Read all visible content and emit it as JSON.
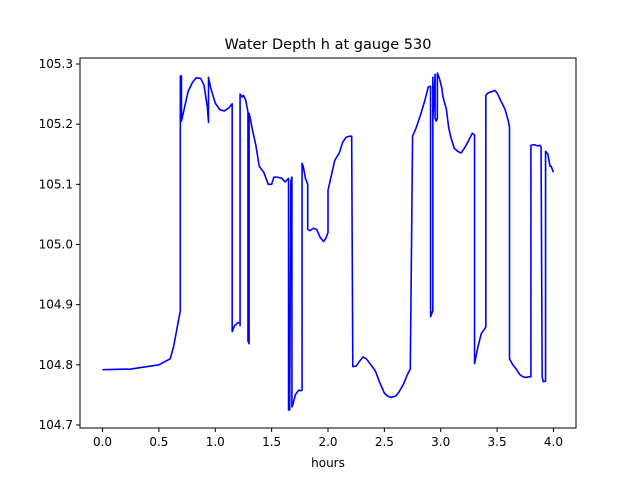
{
  "chart_data": {
    "type": "line",
    "title": "Water Depth h at gauge 530",
    "xlabel": "hours",
    "ylabel": "",
    "xlim": [
      -0.2,
      4.2
    ],
    "ylim": [
      104.695,
      105.31
    ],
    "xticks": [
      "0.0",
      "0.5",
      "1.0",
      "1.5",
      "2.0",
      "2.5",
      "3.0",
      "3.5",
      "4.0"
    ],
    "yticks": [
      "104.7",
      "104.8",
      "104.9",
      "105.0",
      "105.1",
      "105.2",
      "105.3"
    ],
    "grid": false,
    "series": [
      {
        "color": "#0000ff",
        "x": [
          0.0,
          0.25,
          0.5,
          0.6,
          0.63,
          0.66,
          0.69,
          0.69,
          0.7,
          0.7,
          0.73,
          0.76,
          0.8,
          0.83,
          0.87,
          0.9,
          0.93,
          0.94,
          0.94,
          0.96,
          1.0,
          1.04,
          1.08,
          1.12,
          1.15,
          1.15,
          1.17,
          1.2,
          1.22,
          1.22,
          1.22,
          1.24,
          1.25,
          1.27,
          1.29,
          1.29,
          1.3,
          1.3,
          1.31,
          1.33,
          1.36,
          1.39,
          1.43,
          1.47,
          1.5,
          1.52,
          1.55,
          1.59,
          1.62,
          1.65,
          1.65,
          1.66,
          1.67,
          1.68,
          1.68,
          1.69,
          1.71,
          1.74,
          1.76,
          1.77,
          1.77,
          1.78,
          1.8,
          1.82,
          1.82,
          1.84,
          1.87,
          1.9,
          1.93,
          1.96,
          1.98,
          2.0,
          2.0,
          2.03,
          2.06,
          2.1,
          2.13,
          2.16,
          2.19,
          2.21,
          2.22,
          2.22,
          2.25,
          2.28,
          2.31,
          2.34,
          2.38,
          2.42,
          2.46,
          2.5,
          2.53,
          2.56,
          2.6,
          2.63,
          2.67,
          2.7,
          2.73,
          2.75,
          2.75,
          2.78,
          2.82,
          2.86,
          2.89,
          2.91,
          2.91,
          2.92,
          2.93,
          2.93,
          2.93,
          2.95,
          2.95,
          2.96,
          2.97,
          2.97,
          2.99,
          3.01,
          3.02,
          3.05,
          3.07,
          3.09,
          3.12,
          3.15,
          3.18,
          3.21,
          3.24,
          3.28,
          3.3,
          3.3,
          3.33,
          3.36,
          3.39,
          3.4,
          3.4,
          3.42,
          3.45,
          3.48,
          3.5,
          3.53,
          3.57,
          3.6,
          3.61,
          3.61,
          3.64,
          3.67,
          3.7,
          3.73,
          3.76,
          3.78,
          3.8,
          3.8,
          3.83,
          3.86,
          3.88,
          3.89,
          3.9,
          3.91,
          3.93,
          3.93,
          3.95,
          3.97,
          3.98,
          4.0
        ],
        "y": [
          104.792,
          104.793,
          104.8,
          104.81,
          104.83,
          104.86,
          104.89,
          105.28,
          105.28,
          105.205,
          105.23,
          105.255,
          105.27,
          105.277,
          105.276,
          105.265,
          105.228,
          105.203,
          105.278,
          105.26,
          105.235,
          105.224,
          105.222,
          105.227,
          105.234,
          104.855,
          104.865,
          104.87,
          104.87,
          104.865,
          105.25,
          105.245,
          105.248,
          105.24,
          105.22,
          104.84,
          104.835,
          105.218,
          105.21,
          105.19,
          105.165,
          105.13,
          105.12,
          105.1,
          105.1,
          105.112,
          105.112,
          105.11,
          105.104,
          105.11,
          104.725,
          104.725,
          105.105,
          105.112,
          104.73,
          104.735,
          104.75,
          104.758,
          104.757,
          104.758,
          105.135,
          105.13,
          105.11,
          105.1,
          105.025,
          105.023,
          105.027,
          105.025,
          105.012,
          105.005,
          105.01,
          105.02,
          105.09,
          105.115,
          105.14,
          105.152,
          105.17,
          105.178,
          105.18,
          105.18,
          104.797,
          104.797,
          104.798,
          104.806,
          104.813,
          104.81,
          104.8,
          104.79,
          104.77,
          104.753,
          104.748,
          104.746,
          104.748,
          104.755,
          104.768,
          104.782,
          104.793,
          105.175,
          105.18,
          105.193,
          105.215,
          105.24,
          105.262,
          105.263,
          104.88,
          104.885,
          104.89,
          105.278,
          105.205,
          105.283,
          105.21,
          105.205,
          105.21,
          105.285,
          105.275,
          105.26,
          105.245,
          105.225,
          105.195,
          105.178,
          105.16,
          105.155,
          105.152,
          105.16,
          105.17,
          105.185,
          105.182,
          104.802,
          104.83,
          104.852,
          104.86,
          104.863,
          105.248,
          105.252,
          105.254,
          105.256,
          105.252,
          105.24,
          105.225,
          105.205,
          105.195,
          104.81,
          104.8,
          104.793,
          104.784,
          104.78,
          104.779,
          104.78,
          104.78,
          105.165,
          105.166,
          105.164,
          105.165,
          105.162,
          104.78,
          104.772,
          104.773,
          105.155,
          105.15,
          105.13,
          105.13,
          105.12
        ]
      }
    ]
  }
}
